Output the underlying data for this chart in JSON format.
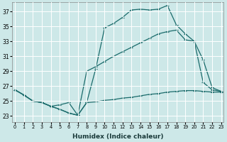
{
  "xlabel": "Humidex (Indice chaleur)",
  "xlim": [
    -0.3,
    23.3
  ],
  "ylim": [
    22.2,
    38.2
  ],
  "yticks": [
    23,
    25,
    27,
    29,
    31,
    33,
    35,
    37
  ],
  "xticks": [
    0,
    1,
    2,
    3,
    4,
    5,
    6,
    7,
    8,
    9,
    10,
    11,
    12,
    13,
    14,
    15,
    16,
    17,
    18,
    19,
    20,
    21,
    22,
    23
  ],
  "bg_color": "#cde8e8",
  "grid_color": "#b8d8d8",
  "line_color": "#1a6b6b",
  "line1_x": [
    0,
    1,
    2,
    3,
    4,
    5,
    6,
    7,
    8,
    9,
    10,
    11,
    12,
    13,
    14,
    15,
    16,
    17,
    18,
    19,
    20,
    21,
    22,
    23
  ],
  "line1_y": [
    26.5,
    25.8,
    25.0,
    24.8,
    24.3,
    23.9,
    23.4,
    23.1,
    24.8,
    29.3,
    34.8,
    35.4,
    36.2,
    37.2,
    37.3,
    37.2,
    37.3,
    37.8,
    35.2,
    34.0,
    33.0,
    30.5,
    26.8,
    26.3
  ],
  "line2_x": [
    0,
    1,
    2,
    3,
    4,
    5,
    6,
    7,
    8,
    9,
    10,
    11,
    12,
    13,
    14,
    15,
    16,
    17,
    18,
    19,
    20,
    21,
    22,
    23
  ],
  "line2_y": [
    26.5,
    25.8,
    25.0,
    24.8,
    24.3,
    23.9,
    23.4,
    23.1,
    29.0,
    29.6,
    30.3,
    31.0,
    31.6,
    32.2,
    32.8,
    33.4,
    34.0,
    34.3,
    34.5,
    33.2,
    33.0,
    27.5,
    26.5,
    26.3
  ],
  "line3_x": [
    0,
    1,
    2,
    3,
    4,
    5,
    6,
    7,
    8,
    9,
    10,
    11,
    12,
    13,
    14,
    15,
    16,
    17,
    18,
    19,
    20,
    21,
    22,
    23
  ],
  "line3_y": [
    26.5,
    25.8,
    25.0,
    24.8,
    24.3,
    24.5,
    24.8,
    23.1,
    24.8,
    24.9,
    25.1,
    25.2,
    25.4,
    25.5,
    25.7,
    25.9,
    26.0,
    26.2,
    26.3,
    26.4,
    26.4,
    26.3,
    26.2,
    26.2
  ]
}
